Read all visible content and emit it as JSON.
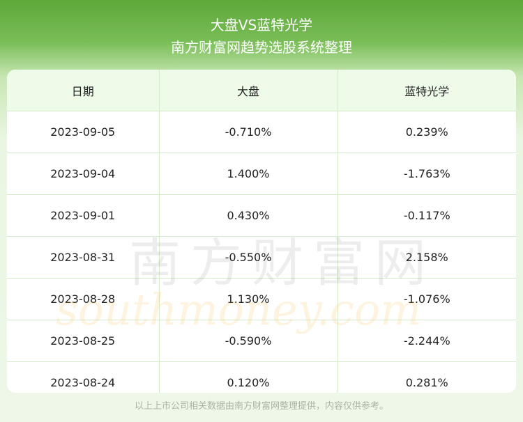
{
  "header": {
    "title": "大盘VS蓝特光学",
    "subtitle": "南方财富网趋势选股系统整理"
  },
  "table": {
    "columns": [
      "日期",
      "大盘",
      "蓝特光学"
    ],
    "rows": [
      [
        "2023-09-05",
        "-0.710%",
        "0.239%"
      ],
      [
        "2023-09-04",
        "1.400%",
        "-1.763%"
      ],
      [
        "2023-09-01",
        "0.430%",
        "-0.117%"
      ],
      [
        "2023-08-31",
        "-0.550%",
        "2.158%"
      ],
      [
        "2023-08-28",
        "1.130%",
        "-1.076%"
      ],
      [
        "2023-08-25",
        "-0.590%",
        "-2.244%"
      ],
      [
        "2023-08-24",
        "0.120%",
        "0.281%"
      ]
    ]
  },
  "watermark": {
    "cn": "南方财富网",
    "en": "southmoney.com"
  },
  "footer": {
    "disclaimer": "以上上市公司相关数据由南方财富网整理提供，内容仅供参考。"
  }
}
